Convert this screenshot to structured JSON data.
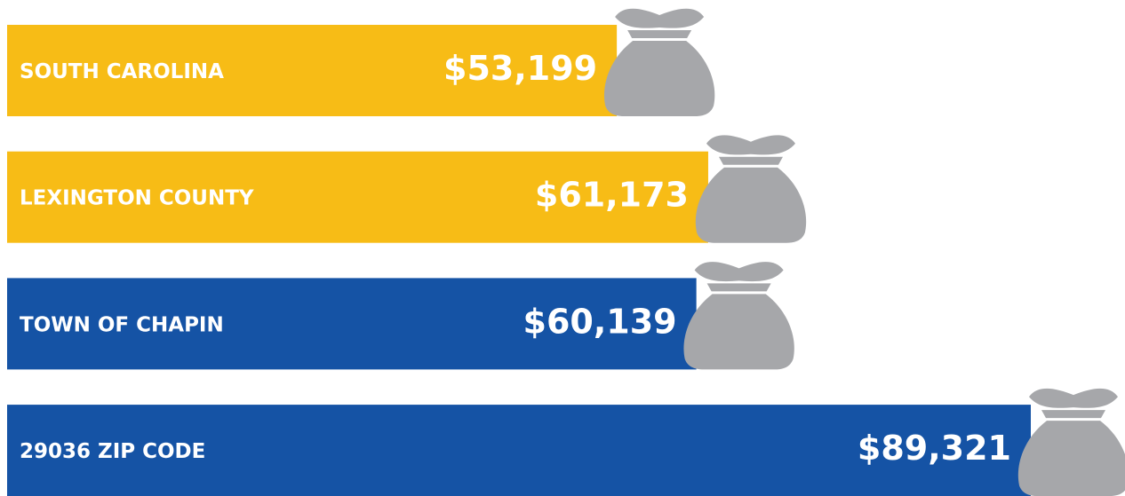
{
  "chart_data": {
    "type": "bar",
    "orientation": "horizontal",
    "categories": [
      "SOUTH CAROLINA",
      "LEXINGTON COUNTY",
      "TOWN OF CHAPIN",
      "29036 ZIP CODE"
    ],
    "values": [
      53199,
      61173,
      60139,
      89321
    ],
    "value_labels": [
      "$53,199",
      "$61,173",
      "$60,139",
      "$89,321"
    ],
    "colors": [
      "#f7bc16",
      "#f7bc16",
      "#1553a5",
      "#1553a5"
    ]
  }
}
